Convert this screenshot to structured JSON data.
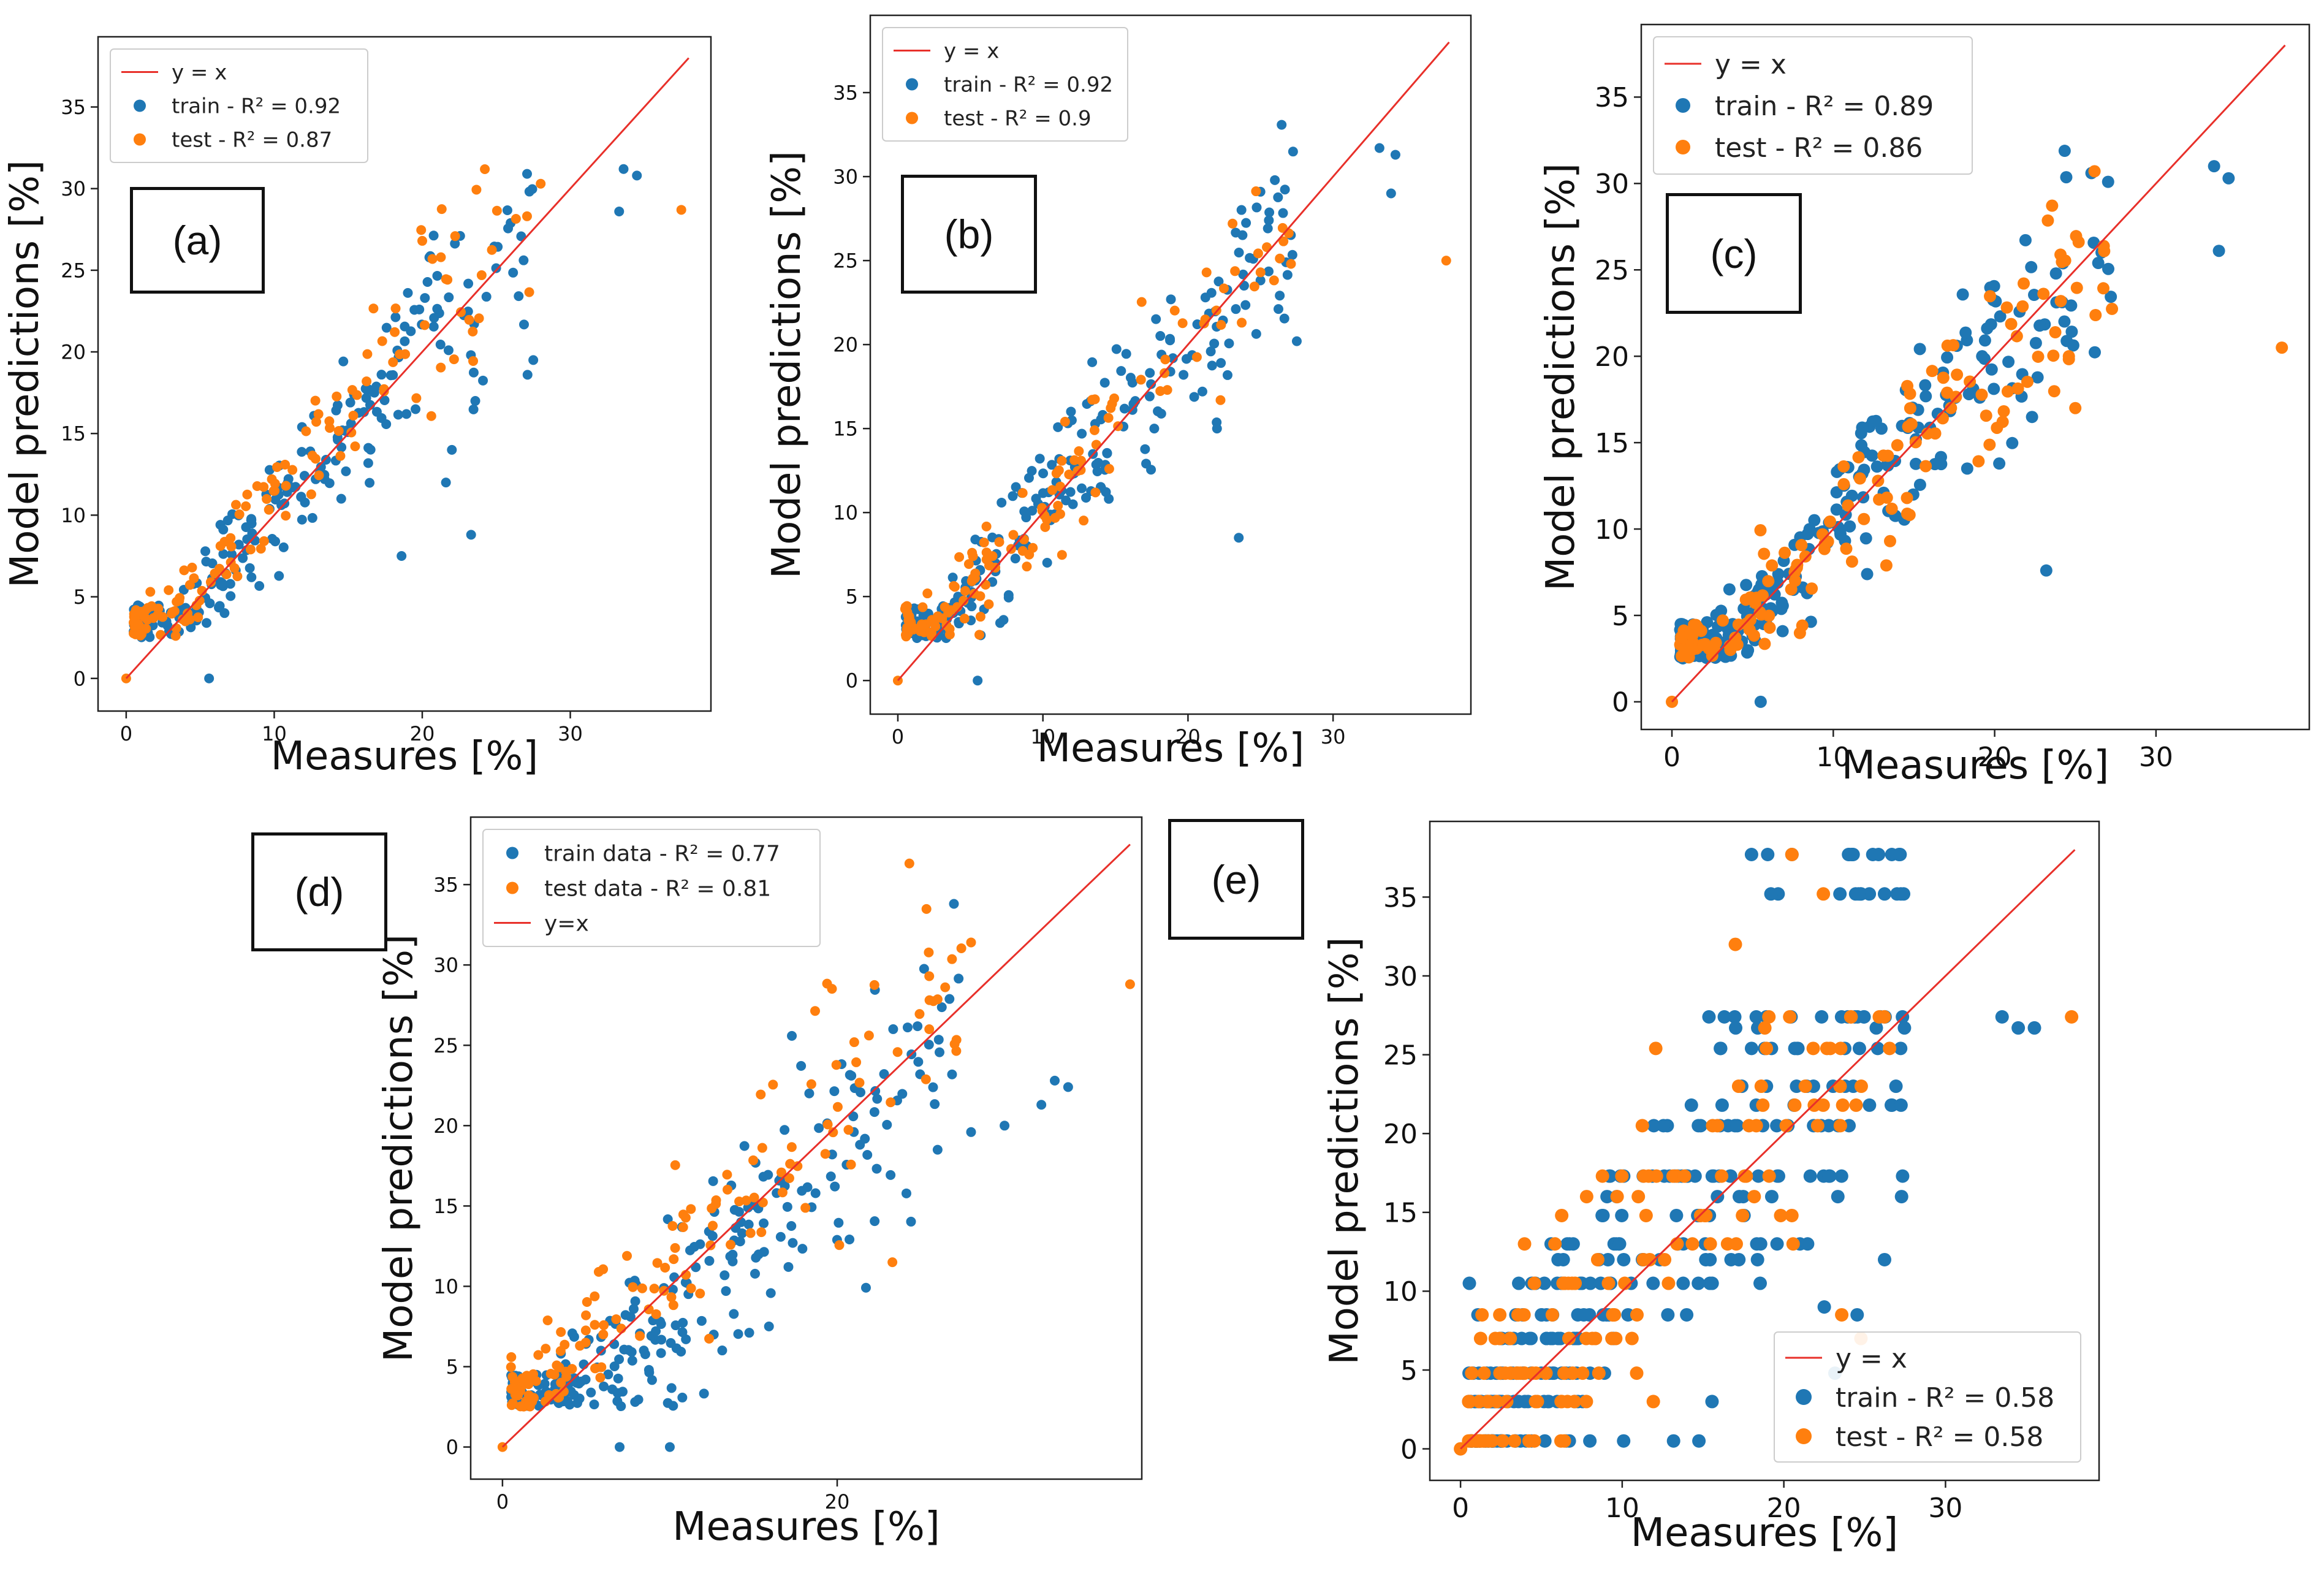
{
  "colors": {
    "train": "#1f77b4",
    "test": "#ff7f0e",
    "identity": "#e8302a",
    "axes": "#222222"
  },
  "chart_data": [
    {
      "type": "scatter",
      "panel_label": "(a)",
      "xlabel": "Measures [%]",
      "ylabel": "Model predictions [%]",
      "xlim": [
        -1.9,
        39.5
      ],
      "ylim": [
        -2,
        39.3
      ],
      "xticks": [
        0,
        10,
        20,
        30
      ],
      "yticks": [
        0,
        5,
        10,
        15,
        20,
        25,
        30,
        35
      ],
      "legend": {
        "position": "top-left",
        "entries": [
          "y = x",
          "train - R² = 0.92",
          "test - R² = 0.87"
        ]
      },
      "identity_line": [
        0,
        38
      ],
      "series": [
        {
          "name": "train",
          "r2": 0.92,
          "spread": 2.2,
          "n": 230,
          "seed": 11,
          "bias": 0.1,
          "outliers": [
            [
              27.5,
              19.5
            ],
            [
              23.3,
              8.8
            ],
            [
              34.5,
              30.8
            ],
            [
              33.6,
              31.2
            ],
            [
              33.3,
              28.6
            ],
            [
              18.6,
              7.5
            ],
            [
              21.6,
              12
            ],
            [
              5.6,
              0
            ],
            [
              22,
              14
            ]
          ]
        },
        {
          "name": "test",
          "r2": 0.87,
          "spread": 2.0,
          "n": 140,
          "seed": 23,
          "bias": 0.9,
          "outliers": [
            [
              0,
              0
            ],
            [
              37.5,
              28.7
            ],
            [
              28,
              30.3
            ],
            [
              20,
              26.8
            ]
          ]
        }
      ]
    },
    {
      "type": "scatter",
      "panel_label": "(b)",
      "xlabel": "Measures [%]",
      "ylabel": "Model predictions [%]",
      "xlim": [
        -1.9,
        39.5
      ],
      "ylim": [
        -2,
        39.6
      ],
      "xticks": [
        0,
        10,
        20,
        30
      ],
      "yticks": [
        0,
        5,
        10,
        15,
        20,
        25,
        30,
        35
      ],
      "legend": {
        "position": "top-left",
        "entries": [
          "y = x",
          "train - R² = 0.92",
          "test - R² = 0.9"
        ]
      },
      "identity_line": [
        0,
        38
      ],
      "series": [
        {
          "name": "train",
          "r2": 0.92,
          "spread": 2.0,
          "n": 240,
          "seed": 37,
          "bias": 0.1,
          "outliers": [
            [
              23.5,
              8.5
            ],
            [
              5.5,
              0
            ],
            [
              33.2,
              31.7
            ],
            [
              34,
              29
            ],
            [
              34.3,
              31.3
            ],
            [
              27.5,
              20.2
            ],
            [
              22,
              15
            ]
          ]
        },
        {
          "name": "test",
          "r2": 0.9,
          "spread": 2.0,
          "n": 140,
          "seed": 41,
          "bias": 0.5,
          "outliers": [
            [
              0,
              0
            ],
            [
              37.8,
              25
            ],
            [
              25,
              24.3
            ]
          ]
        }
      ]
    },
    {
      "type": "scatter",
      "panel_label": "(c)",
      "xlabel": "Measures [%]",
      "ylabel": "Model predictions [%]",
      "xlim": [
        -1.9,
        39.5
      ],
      "ylim": [
        -1.6,
        39.2
      ],
      "xticks": [
        0,
        10,
        20,
        30
      ],
      "yticks": [
        0,
        5,
        10,
        15,
        20,
        25,
        30,
        35
      ],
      "legend": {
        "position": "top-left",
        "entries": [
          "y = x",
          "train - R² = 0.89",
          "test - R² = 0.86"
        ]
      },
      "identity_line": [
        0,
        38
      ],
      "series": [
        {
          "name": "train",
          "r2": 0.89,
          "spread": 2.4,
          "n": 250,
          "seed": 53,
          "bias": 0.3,
          "outliers": [
            [
              5.5,
              0
            ],
            [
              23.2,
              7.6
            ],
            [
              33.6,
              31
            ],
            [
              34.5,
              30.3
            ],
            [
              33.9,
              26.1
            ],
            [
              26,
              30.6
            ]
          ]
        },
        {
          "name": "test",
          "r2": 0.86,
          "spread": 2.3,
          "n": 150,
          "seed": 61,
          "bias": 0.2,
          "outliers": [
            [
              0,
              0
            ],
            [
              37.8,
              20.5
            ],
            [
              25,
              17
            ],
            [
              24.6,
              20
            ]
          ]
        }
      ]
    },
    {
      "type": "scatter",
      "panel_label": "(d)",
      "xlabel": "Measures [%]",
      "ylabel": "Model predictions [%]",
      "xlim": [
        -1.9,
        38.2
      ],
      "ylim": [
        -2,
        39.2
      ],
      "xticks": [
        0,
        20
      ],
      "yticks": [
        0,
        5,
        10,
        15,
        20,
        25,
        30,
        35
      ],
      "legend": {
        "position": "top-left",
        "entries": [
          "train data - R² = 0.77",
          "test data - R² = 0.81",
          "y=x"
        ]
      },
      "identity_line": [
        0,
        37.5
      ],
      "series": [
        {
          "name": "train data",
          "r2": 0.77,
          "spread": 3.0,
          "n": 260,
          "seed": 71,
          "bias": -1.6,
          "outliers": [
            [
              33,
              22.8
            ],
            [
              33.8,
              22.4
            ],
            [
              32.2,
              21.3
            ],
            [
              30,
              20
            ],
            [
              28,
              19.6
            ],
            [
              26,
              18.5
            ],
            [
              10,
              0
            ],
            [
              7,
              0
            ]
          ]
        },
        {
          "name": "test data",
          "r2": 0.81,
          "spread": 2.8,
          "n": 150,
          "seed": 83,
          "bias": 1.6,
          "outliers": [
            [
              0,
              0
            ],
            [
              37.5,
              28.8
            ],
            [
              28,
              31.4
            ],
            [
              25.5,
              29.3
            ],
            [
              23.3,
              11.5
            ],
            [
              25.5,
              26
            ]
          ]
        }
      ]
    },
    {
      "type": "scatter",
      "panel_label": "(e)",
      "xlabel": "Measures [%]",
      "ylabel": "Model predictions [%]",
      "xlim": [
        -1.9,
        39.5
      ],
      "ylim": [
        -2,
        39.8
      ],
      "xticks": [
        0,
        10,
        20,
        30
      ],
      "yticks": [
        0,
        5,
        10,
        15,
        20,
        25,
        30,
        35
      ],
      "legend": {
        "position": "bottom-right",
        "entries": [
          "y = x",
          "train - R² = 0.58",
          "test - R² = 0.58"
        ]
      },
      "identity_line": [
        0,
        38
      ],
      "quantize": [
        0.5,
        3,
        4.8,
        7,
        8.5,
        10.5,
        12,
        13,
        14.8,
        16,
        17.3,
        20.5,
        21.8,
        23,
        25.4,
        26.7,
        27.4,
        35.2,
        37.7
      ],
      "series": [
        {
          "name": "train",
          "r2": 0.58,
          "spread": 5.5,
          "n": 330,
          "seed": 97,
          "bias": 0.5,
          "outliers": [
            [
              18,
              37.7
            ],
            [
              19,
              37.7
            ],
            [
              20.5,
              37.7
            ],
            [
              19.2,
              35.2
            ],
            [
              27,
              35.2
            ],
            [
              33.5,
              27.4
            ],
            [
              34.5,
              26.7
            ],
            [
              35.5,
              26.7
            ],
            [
              8,
              0.5
            ],
            [
              22.5,
              9
            ]
          ]
        },
        {
          "name": "test",
          "r2": 0.58,
          "spread": 5.0,
          "n": 160,
          "seed": 101,
          "bias": 0.8,
          "outliers": [
            [
              0,
              0
            ],
            [
              37.8,
              27.4
            ],
            [
              20.5,
              37.7
            ],
            [
              17,
              32
            ]
          ]
        }
      ]
    }
  ]
}
